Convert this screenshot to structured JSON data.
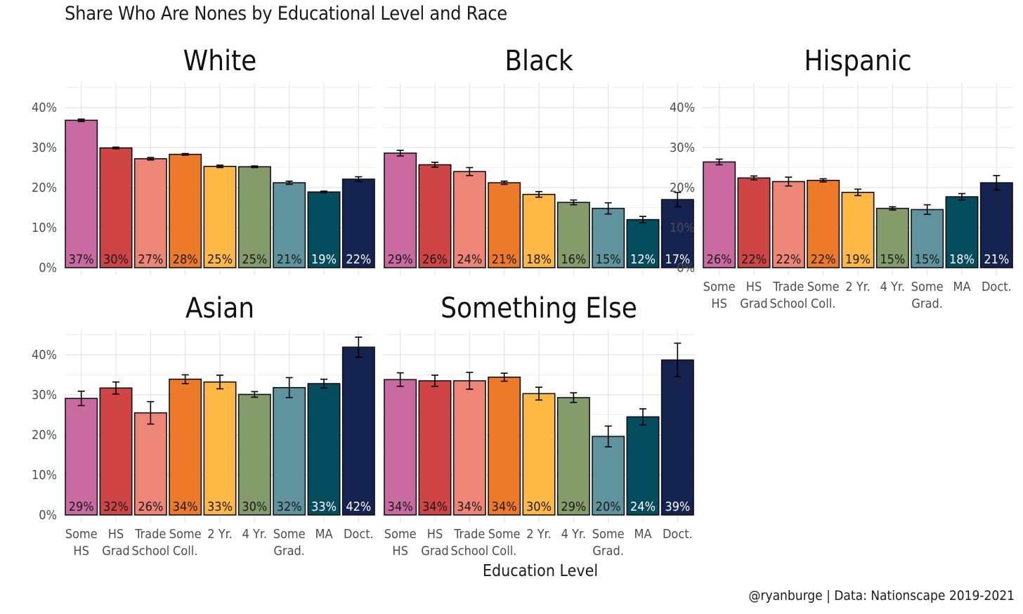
{
  "title": "Share Who Are Nones by Educational Level and Race",
  "caption": "@ryanburge | Data: Nationscape 2019-2021",
  "chart_data": {
    "type": "bar",
    "title": "Share Who Are Nones by Educational Level and Race",
    "xlabel": "Education Level",
    "ylabel": "",
    "ylim": [
      0,
      0.45
    ],
    "yticks": [
      "0%",
      "10%",
      "20%",
      "30%",
      "40%"
    ],
    "categories": [
      {
        "line1": "Some",
        "line2": "HS"
      },
      {
        "line1": "HS",
        "line2": "Grad"
      },
      {
        "line1": "Trade",
        "line2": "School"
      },
      {
        "line1": "Some",
        "line2": "Coll."
      },
      {
        "line1": "2 Yr.",
        "line2": ""
      },
      {
        "line1": "4 Yr.",
        "line2": ""
      },
      {
        "line1": "Some",
        "line2": "Grad."
      },
      {
        "line1": "MA",
        "line2": ""
      },
      {
        "line1": "Doct.",
        "line2": ""
      }
    ],
    "colors": [
      "#c96ba1",
      "#cf4444",
      "#ee8678",
      "#ec7a28",
      "#fdb944",
      "#849b6a",
      "#5f939e",
      "#034d5e",
      "#14234f"
    ],
    "label_colors": [
      "#1a1a1a",
      "#1a1a1a",
      "#1a1a1a",
      "#1a1a1a",
      "#1a1a1a",
      "#1a1a1a",
      "#1a1a1a",
      "#ffffff",
      "#ffffff"
    ],
    "panels": [
      {
        "name": "White",
        "values": [
          0.368,
          0.299,
          0.272,
          0.283,
          0.253,
          0.252,
          0.212,
          0.189,
          0.221
        ],
        "errors": [
          0.003,
          0.002,
          0.003,
          0.002,
          0.003,
          0.002,
          0.004,
          0.002,
          0.006
        ],
        "labels": [
          "37%",
          "30%",
          "27%",
          "28%",
          "25%",
          "25%",
          "21%",
          "19%",
          "22%"
        ]
      },
      {
        "name": "Black",
        "values": [
          0.286,
          0.257,
          0.24,
          0.212,
          0.183,
          0.163,
          0.148,
          0.12,
          0.17
        ],
        "errors": [
          0.007,
          0.006,
          0.01,
          0.004,
          0.007,
          0.006,
          0.014,
          0.008,
          0.018
        ],
        "labels": [
          "29%",
          "26%",
          "24%",
          "21%",
          "18%",
          "16%",
          "15%",
          "12%",
          "17%"
        ]
      },
      {
        "name": "Hispanic",
        "values": [
          0.264,
          0.224,
          0.215,
          0.218,
          0.188,
          0.148,
          0.145,
          0.177,
          0.212
        ],
        "errors": [
          0.007,
          0.005,
          0.011,
          0.004,
          0.008,
          0.004,
          0.012,
          0.008,
          0.018
        ],
        "labels": [
          "26%",
          "22%",
          "22%",
          "22%",
          "19%",
          "15%",
          "15%",
          "18%",
          "21%"
        ]
      },
      {
        "name": "Asian",
        "values": [
          0.291,
          0.317,
          0.255,
          0.339,
          0.332,
          0.301,
          0.318,
          0.328,
          0.419
        ],
        "errors": [
          0.018,
          0.015,
          0.028,
          0.011,
          0.017,
          0.007,
          0.025,
          0.011,
          0.025
        ],
        "labels": [
          "29%",
          "32%",
          "26%",
          "34%",
          "33%",
          "30%",
          "32%",
          "33%",
          "42%"
        ]
      },
      {
        "name": "Something Else",
        "values": [
          0.338,
          0.335,
          0.335,
          0.344,
          0.303,
          0.293,
          0.196,
          0.245,
          0.387
        ],
        "errors": [
          0.017,
          0.014,
          0.021,
          0.01,
          0.016,
          0.012,
          0.026,
          0.02,
          0.042
        ],
        "labels": [
          "34%",
          "34%",
          "34%",
          "34%",
          "30%",
          "29%",
          "20%",
          "24%",
          "39%"
        ]
      }
    ]
  }
}
